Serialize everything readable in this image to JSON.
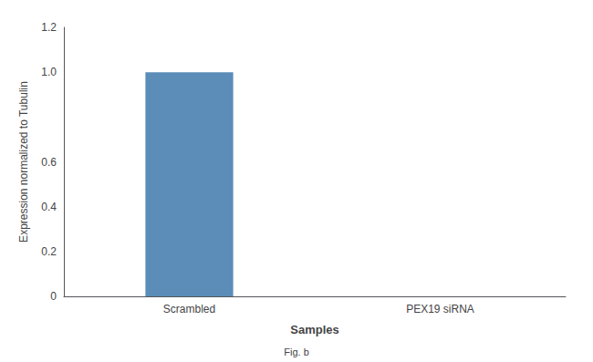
{
  "chart_data": {
    "type": "bar",
    "categories": [
      "Scrambled",
      "PEX19 siRNA"
    ],
    "values": [
      1.0,
      0.0
    ],
    "color": "#5b8db8",
    "ylim": [
      0,
      1.2
    ],
    "yticks": [
      0,
      0.2,
      0.4,
      0.6,
      {
        "value": 1,
        "label": "1.0"
      },
      1.2
    ],
    "ylabel": "Expression normalized to Tubulin",
    "xlabel": "Samples",
    "annotations": [
      "Fig. b"
    ],
    "grid": false
  }
}
